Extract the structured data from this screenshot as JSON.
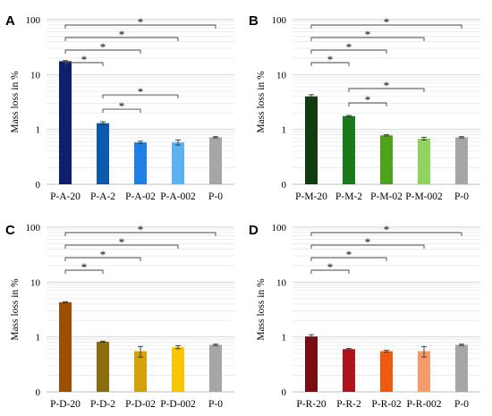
{
  "chart_data": [
    {
      "panel": "A",
      "type": "bar",
      "scale": "log",
      "ylabel": "Mass loss in %",
      "ytick_labels": [
        "0",
        "1",
        "10",
        "100"
      ],
      "categories": [
        "P-A-20",
        "P-A-2",
        "P-A-02",
        "P-A-002",
        "P-0"
      ],
      "values": [
        17.5,
        1.3,
        0.58,
        0.58,
        0.72
      ],
      "errors": [
        0.5,
        0.08,
        0.03,
        0.06,
        0.02
      ],
      "colors": [
        "#0f1f6b",
        "#0b5aab",
        "#1f7fe6",
        "#5cb2f0",
        "#a6a6a6"
      ],
      "significance": [
        {
          "from": 0,
          "to": 4,
          "label": "*"
        },
        {
          "from": 0,
          "to": 3,
          "label": "*"
        },
        {
          "from": 0,
          "to": 2,
          "label": "*"
        },
        {
          "from": 0,
          "to": 1,
          "label": "*"
        },
        {
          "from": 1,
          "to": 3,
          "label": "*"
        },
        {
          "from": 1,
          "to": 2,
          "label": "*"
        }
      ]
    },
    {
      "panel": "B",
      "type": "bar",
      "scale": "log",
      "ylabel": "Mass loss in %",
      "ytick_labels": [
        "0",
        "1",
        "10",
        "100"
      ],
      "categories": [
        "P-M-20",
        "P-M-2",
        "P-M-02",
        "P-M-002",
        "P-0"
      ],
      "values": [
        4.0,
        1.75,
        0.78,
        0.68,
        0.72
      ],
      "errors": [
        0.3,
        0.05,
        0.02,
        0.04,
        0.02
      ],
      "colors": [
        "#0f3d0f",
        "#1a7a1a",
        "#4ea31c",
        "#8fd45c",
        "#a6a6a6"
      ],
      "significance": [
        {
          "from": 0,
          "to": 4,
          "label": "*"
        },
        {
          "from": 0,
          "to": 3,
          "label": "*"
        },
        {
          "from": 0,
          "to": 2,
          "label": "*"
        },
        {
          "from": 0,
          "to": 1,
          "label": "*"
        },
        {
          "from": 1,
          "to": 3,
          "label": "*"
        },
        {
          "from": 1,
          "to": 2,
          "label": "*"
        }
      ]
    },
    {
      "panel": "C",
      "type": "bar",
      "scale": "log",
      "ylabel": "Mass loss in %",
      "ytick_labels": [
        "0",
        "1",
        "10",
        "100"
      ],
      "categories": [
        "P-D-20",
        "P-D-2",
        "P-D-02",
        "P-D-002",
        "P-0"
      ],
      "values": [
        4.3,
        0.82,
        0.55,
        0.65,
        0.72
      ],
      "errors": [
        0.1,
        0.02,
        0.12,
        0.04,
        0.02
      ],
      "colors": [
        "#9c5003",
        "#8a6d0c",
        "#d4a20a",
        "#f7c600",
        "#a6a6a6"
      ],
      "significance": [
        {
          "from": 0,
          "to": 4,
          "label": "*"
        },
        {
          "from": 0,
          "to": 3,
          "label": "*"
        },
        {
          "from": 0,
          "to": 2,
          "label": "*"
        },
        {
          "from": 0,
          "to": 1,
          "label": "*"
        }
      ]
    },
    {
      "panel": "D",
      "type": "bar",
      "scale": "log",
      "ylabel": "Mass loss in %",
      "ytick_labels": [
        "0",
        "1",
        "10",
        "100"
      ],
      "categories": [
        "P-R-20",
        "P-R-2",
        "P-R-02",
        "P-R-002",
        "P-0"
      ],
      "values": [
        1.02,
        0.6,
        0.55,
        0.55,
        0.72
      ],
      "errors": [
        0.08,
        0.02,
        0.02,
        0.12,
        0.02
      ],
      "colors": [
        "#7a0c14",
        "#b01319",
        "#ee5a10",
        "#f59a6a",
        "#a6a6a6"
      ],
      "significance": [
        {
          "from": 0,
          "to": 4,
          "label": "*"
        },
        {
          "from": 0,
          "to": 3,
          "label": "*"
        },
        {
          "from": 0,
          "to": 2,
          "label": "*"
        },
        {
          "from": 0,
          "to": 1,
          "label": "*"
        }
      ]
    }
  ]
}
